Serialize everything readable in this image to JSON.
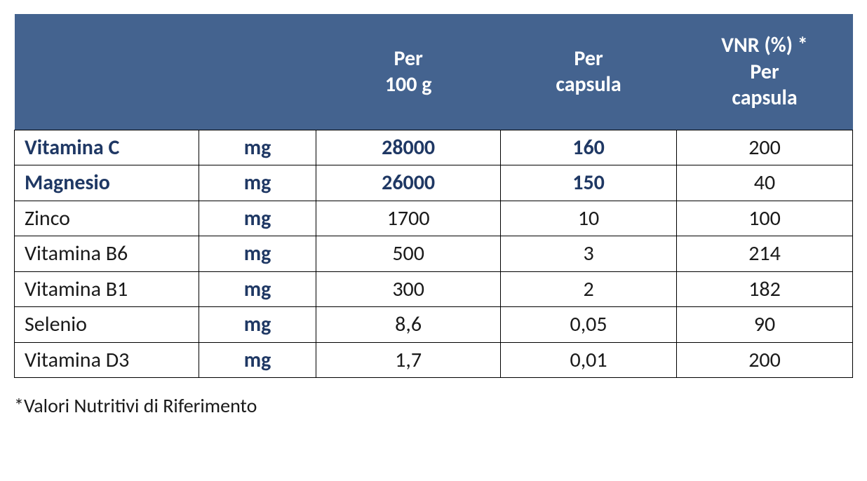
{
  "style": {
    "header_bg": "#44638f",
    "header_text": "#ffffff",
    "body_text": "#1a1a1a",
    "accent_text": "#1f3864",
    "border_color": "#000000",
    "font_family": "Calibri, 'Segoe UI', Arial, sans-serif",
    "header_fontsize_pt": 22,
    "body_fontsize_pt": 22
  },
  "table": {
    "column_widths_pct": [
      22,
      14,
      22,
      21,
      21
    ],
    "columns": [
      {
        "label": ""
      },
      {
        "label": ""
      },
      {
        "label_line1": "Per",
        "label_line2": "100 g"
      },
      {
        "label_line1": "Per",
        "label_line2": "capsula"
      },
      {
        "label_line1": "VNR (%) *",
        "label_line2": "Per",
        "label_line3": "capsula"
      }
    ],
    "rows": [
      {
        "highlight": true,
        "name": "Vitamina C",
        "unit": "mg",
        "per100g": "28000",
        "perCapsula": "160",
        "vnr": "200"
      },
      {
        "highlight": true,
        "name": "Magnesio",
        "unit": "mg",
        "per100g": "26000",
        "perCapsula": "150",
        "vnr": "40"
      },
      {
        "highlight": false,
        "name": "Zinco",
        "unit": "mg",
        "per100g": "1700",
        "perCapsula": "10",
        "vnr": "100"
      },
      {
        "highlight": false,
        "name": "Vitamina B6",
        "unit": "mg",
        "per100g": "500",
        "perCapsula": "3",
        "vnr": "214"
      },
      {
        "highlight": false,
        "name": "Vitamina B1",
        "unit": "mg",
        "per100g": "300",
        "perCapsula": "2",
        "vnr": "182"
      },
      {
        "highlight": false,
        "name": "Selenio",
        "unit": "mg",
        "per100g": "8,6",
        "perCapsula": "0,05",
        "vnr": "90"
      },
      {
        "highlight": false,
        "name": "Vitamina D3",
        "unit": "mg",
        "per100g": "1,7",
        "perCapsula": "0,01",
        "vnr": "200"
      }
    ]
  },
  "footnote": "*Valori Nutritivi di Riferimento"
}
